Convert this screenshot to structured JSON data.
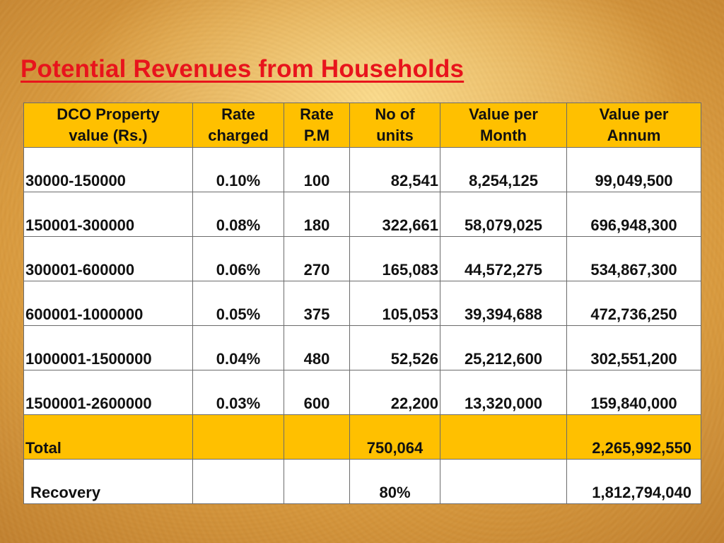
{
  "title": "Potential Revenues from Households",
  "table": {
    "headers": [
      {
        "line1": "DCO Property",
        "line2": "value  (Rs.)"
      },
      {
        "line1": "Rate",
        "line2": "charged"
      },
      {
        "line1": "Rate",
        "line2": "P.M"
      },
      {
        "line1": "No of",
        "line2": "units"
      },
      {
        "line1": "Value per",
        "line2": "Month"
      },
      {
        "line1": "Value per",
        "line2": "Annum"
      }
    ],
    "rows": [
      {
        "range": "30000-150000",
        "rate": "0.10%",
        "rate_pm": "100",
        "units": "82,541",
        "month": "8,254,125",
        "annum": "99,049,500"
      },
      {
        "range": "150001-300000",
        "rate": "0.08%",
        "rate_pm": "180",
        "units": "322,661",
        "month": "58,079,025",
        "annum": "696,948,300"
      },
      {
        "range": "300001-600000",
        "rate": "0.06%",
        "rate_pm": "270",
        "units": "165,083",
        "month": "44,572,275",
        "annum": "534,867,300"
      },
      {
        "range": "600001-1000000",
        "rate": "0.05%",
        "rate_pm": "375",
        "units": "105,053",
        "month": "39,394,688",
        "annum": "472,736,250"
      },
      {
        "range": "1000001-1500000",
        "rate": "0.04%",
        "rate_pm": "480",
        "units": "52,526",
        "month": "25,212,600",
        "annum": "302,551,200"
      },
      {
        "range": "1500001-2600000",
        "rate": "0.03%",
        "rate_pm": "600",
        "units": "22,200",
        "month": "13,320,000",
        "annum": "159,840,000"
      }
    ],
    "total": {
      "label": "Total",
      "units": "750,064",
      "annum": "2,265,992,550"
    },
    "recovery": {
      "label": "Recovery",
      "units": "80%",
      "annum": "1,812,794,040"
    }
  },
  "colors": {
    "title": "#e8141c",
    "header_fill": "#ffc000",
    "total_fill": "#ffc000",
    "background": "#d99a3e"
  }
}
